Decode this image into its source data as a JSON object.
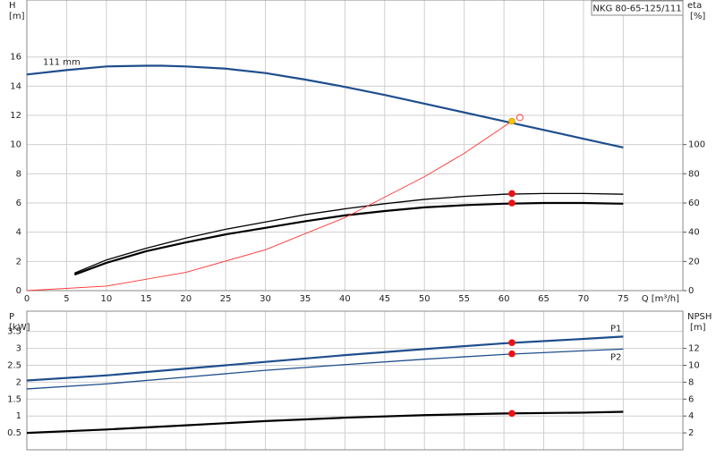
{
  "chart_data": [
    {
      "type": "line",
      "title": "NKG 80-65-125/111",
      "ylabel": "H",
      "yunit": "[m]",
      "y2label": "eta",
      "y2unit": "[%]",
      "xlabel": "Q [m³/h]",
      "xlim": [
        0,
        82.5
      ],
      "xticks": [
        0,
        5,
        10,
        15,
        20,
        25,
        30,
        35,
        40,
        45,
        50,
        55,
        60,
        65,
        70,
        75
      ],
      "ylim": [
        0,
        19.9
      ],
      "yticks": [
        0,
        2,
        4,
        6,
        8,
        10,
        12,
        14,
        16
      ],
      "y2lim": [
        0,
        199
      ],
      "y2ticks": [
        0,
        20,
        40,
        60,
        80,
        100
      ],
      "grid": true,
      "xtick_labels": true,
      "series": [
        {
          "label": "111 mm",
          "color": "#1f4e8c",
          "weight": "bold",
          "axis": "y",
          "x": [
            0,
            5,
            10,
            15,
            17,
            20,
            25,
            30,
            35,
            40,
            45,
            50,
            55,
            60,
            65,
            70,
            75
          ],
          "values": [
            14.8,
            15.1,
            15.35,
            15.4,
            15.4,
            15.35,
            15.2,
            14.9,
            14.45,
            13.95,
            13.4,
            12.8,
            12.2,
            11.6,
            11.0,
            10.4,
            9.8
          ]
        },
        {
          "color": "#000000",
          "weight": "normal",
          "axis": "y2",
          "x": [
            6,
            10,
            15,
            20,
            25,
            30,
            35,
            40,
            45,
            50,
            55,
            60,
            65,
            70,
            75
          ],
          "values": [
            12,
            21,
            29,
            36,
            42,
            47,
            52,
            56,
            59.5,
            62.5,
            64.5,
            66,
            66.5,
            66.5,
            66
          ]
        },
        {
          "color": "#000000",
          "weight": "bold",
          "axis": "y2",
          "x": [
            6,
            10,
            15,
            20,
            25,
            30,
            35,
            40,
            45,
            50,
            55,
            60,
            65,
            70,
            75
          ],
          "values": [
            11,
            19,
            27,
            33,
            38.5,
            43,
            47.5,
            51.5,
            54.5,
            57,
            58.5,
            59.5,
            60,
            60,
            59.5
          ]
        },
        {
          "color": "#ff3333",
          "weight": "thin",
          "axis": "y",
          "x": [
            0,
            10,
            20,
            30,
            40,
            50,
            55,
            61
          ],
          "values": [
            0,
            0.31,
            1.25,
            2.8,
            5,
            7.8,
            9.4,
            11.6
          ]
        }
      ],
      "points": [
        {
          "x": 61,
          "y": 11.6,
          "axis": "y",
          "color": "#ffcc00",
          "style": "filled"
        },
        {
          "x": 62,
          "y": 11.85,
          "axis": "y",
          "color": "#ff4444",
          "style": "open"
        },
        {
          "x": 61,
          "y": 66.5,
          "axis": "y2",
          "color": "#ee1111",
          "style": "filled"
        },
        {
          "x": 61,
          "y": 60,
          "axis": "y2",
          "color": "#ee1111",
          "style": "filled"
        }
      ]
    },
    {
      "type": "line",
      "ylabel": "P",
      "yunit": "[kW]",
      "y2label": "NPSH",
      "y2unit": "[m]",
      "xlim": [
        0,
        82.5
      ],
      "xticks": [
        0,
        5,
        10,
        15,
        20,
        25,
        30,
        35,
        40,
        45,
        50,
        55,
        60,
        65,
        70,
        75
      ],
      "ylim": [
        0,
        4.1
      ],
      "yticks": [
        0.5,
        1.0,
        1.5,
        2.0,
        2.5,
        3.0,
        3.5
      ],
      "y2lim": [
        0,
        16.4
      ],
      "y2ticks": [
        2,
        4,
        6,
        8,
        10,
        12
      ],
      "grid": true,
      "xtick_labels": false,
      "series": [
        {
          "name": "P1",
          "color": "#1f4e8c",
          "weight": "bold",
          "axis": "y",
          "x": [
            0,
            10,
            20,
            30,
            40,
            50,
            60,
            70,
            75
          ],
          "values": [
            2.05,
            2.2,
            2.4,
            2.6,
            2.8,
            2.98,
            3.15,
            3.28,
            3.35
          ]
        },
        {
          "name": "P2",
          "color": "#1f4e8c",
          "weight": "normal",
          "axis": "y",
          "x": [
            0,
            10,
            20,
            30,
            40,
            50,
            60,
            70,
            75
          ],
          "values": [
            1.8,
            1.95,
            2.15,
            2.35,
            2.52,
            2.68,
            2.82,
            2.93,
            2.98
          ]
        },
        {
          "color": "#000000",
          "weight": "bold",
          "axis": "y2",
          "x": [
            0,
            10,
            20,
            30,
            40,
            50,
            60,
            70,
            75
          ],
          "values": [
            2,
            2.4,
            2.9,
            3.4,
            3.8,
            4.1,
            4.3,
            4.4,
            4.5
          ]
        }
      ],
      "points": [
        {
          "x": 61,
          "y": 3.17,
          "axis": "y",
          "color": "#ee1111",
          "style": "filled"
        },
        {
          "x": 61,
          "y": 2.84,
          "axis": "y",
          "color": "#ee1111",
          "style": "filled"
        },
        {
          "x": 61,
          "y": 4.3,
          "axis": "y2",
          "color": "#ee1111",
          "style": "filled"
        }
      ]
    }
  ]
}
